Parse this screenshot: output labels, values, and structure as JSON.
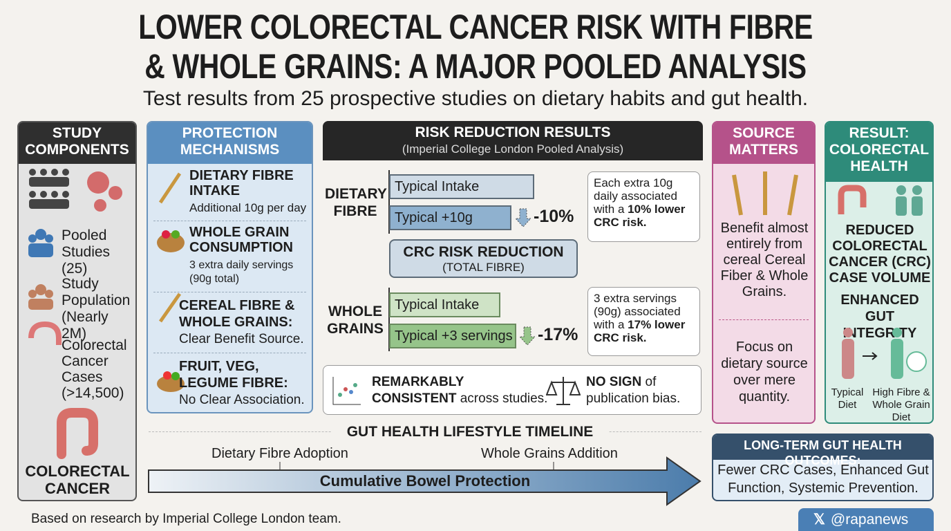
{
  "header": {
    "title": [
      "LOWER COLORECTAL CANCER RISK WITH FIBRE",
      "& WHOLE GRAINS: A MAJOR POOLED ANALYSIS"
    ],
    "subtitle": "Test results from 25 prospective studies on dietary habits and gut health."
  },
  "study_components": {
    "title": "STUDY COMPONENTS",
    "items": [
      "Pooled Studies (25)",
      "Study Population (Nearly 2M)",
      "Colorectal Cancer Cases (>14,500)"
    ],
    "footer": "COLORECTAL CANCER"
  },
  "protection": {
    "title": "PROTECTION MECHANISMS",
    "items": [
      {
        "heading": "DIETARY FIBRE INTAKE",
        "detail": "Additional 10g per day"
      },
      {
        "heading": "WHOLE GRAIN CONSUMPTION",
        "detail": "3 extra daily servings (90g total)"
      },
      {
        "heading": "CEREAL FIBRE & WHOLE GRAINS:",
        "detail": "Clear Benefit Source."
      },
      {
        "heading": "FRUIT, VEG, LEGUME FIBRE:",
        "detail": "No Clear Association."
      }
    ]
  },
  "risk": {
    "title": "RISK REDUCTION RESULTS",
    "subtitle": "(Imperial College London Pooled Analysis)",
    "groups": [
      {
        "label": "DIETARY FIBRE",
        "bars": [
          "Typical Intake",
          "Typical +10g"
        ],
        "change": "-10%",
        "note": "Each extra 10g daily associated with a",
        "note_bold": "10% lower CRC risk."
      },
      {
        "label": "WHOLE GRAINS",
        "bars": [
          "Typical Intake",
          "Typical +3 servings"
        ],
        "change": "-17%",
        "note": "3 extra servings (90g) associated with a",
        "note_bold": "17% lower CRC risk."
      }
    ],
    "reduction": {
      "title": "CRC RISK REDUCTION",
      "subtitle": "(TOTAL FIBRE)"
    },
    "consistency": {
      "strong": "REMARKABLY CONSISTENT",
      "rest": "across studies."
    },
    "bias": {
      "strong": "NO SIGN",
      "rest": "of publication bias."
    }
  },
  "source": {
    "title": "SOURCE MATTERS",
    "benefit": "Benefit almost entirely from cereal Cereal Fiber & Whole Grains.",
    "focus": "Focus on dietary source over mere quantity."
  },
  "result": {
    "title": "RESULT: COLORECTAL HEALTH",
    "outcomes": [
      "REDUCED COLORECTAL CANCER (CRC) CASE VOLUME",
      "ENHANCED GUT INTEGRITY"
    ],
    "diets": [
      "Typical Diet",
      "High Fibre & Whole Grain Diet"
    ]
  },
  "timeline": {
    "title": "GUT HEALTH LIFESTYLE TIMELINE",
    "milestones": [
      "Dietary Fibre Adoption",
      "Whole Grains Addition"
    ],
    "arrow": "Cumulative Bowel Protection"
  },
  "long_term": {
    "title": "LONG-TERM GUT HEALTH OUTCOMES:",
    "text": "Fewer CRC Cases, Enhanced Gut Function, Systemic Prevention."
  },
  "footer": {
    "credit": "Based on research by Imperial College London team.",
    "handle": "@rapanews"
  }
}
